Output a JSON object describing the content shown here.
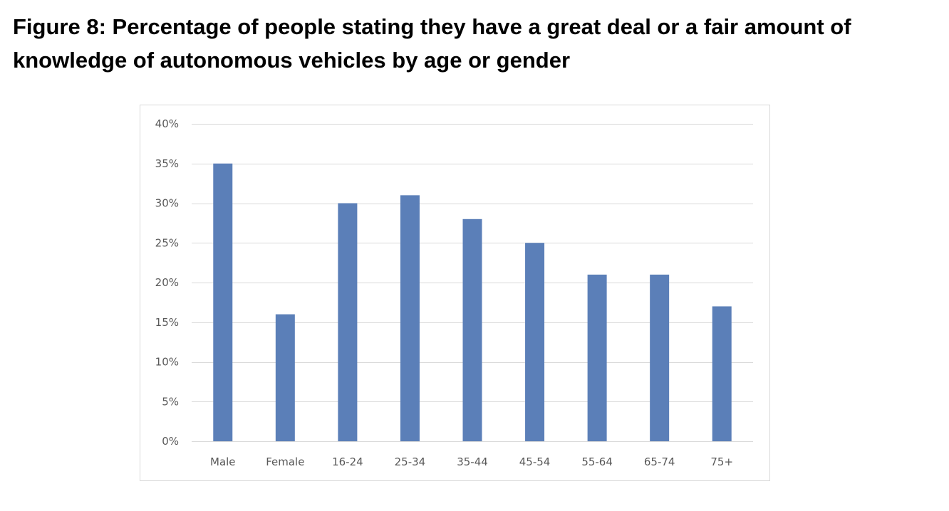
{
  "title": "Figure 8: Percentage of people stating they have a great deal or a fair amount of knowledge of autonomous vehicles by age or gender",
  "chart_data": {
    "type": "bar",
    "title": "",
    "xlabel": "",
    "ylabel": "",
    "categories": [
      "Male",
      "Female",
      "16-24",
      "25-34",
      "35-44",
      "45-54",
      "55-64",
      "65-74",
      "75+"
    ],
    "values": [
      35,
      16,
      30,
      31,
      28,
      25,
      21,
      21,
      17
    ],
    "value_unit": "percent",
    "ylim": [
      0,
      40
    ],
    "yticks": [
      0,
      5,
      10,
      15,
      20,
      25,
      30,
      35,
      40
    ],
    "ytick_labels": [
      "0%",
      "5%",
      "10%",
      "15%",
      "20%",
      "25%",
      "30%",
      "35%",
      "40%"
    ],
    "grid": true,
    "legend": "none",
    "bar_color": "#5b7fb8",
    "grid_color": "#d9d9d9"
  }
}
